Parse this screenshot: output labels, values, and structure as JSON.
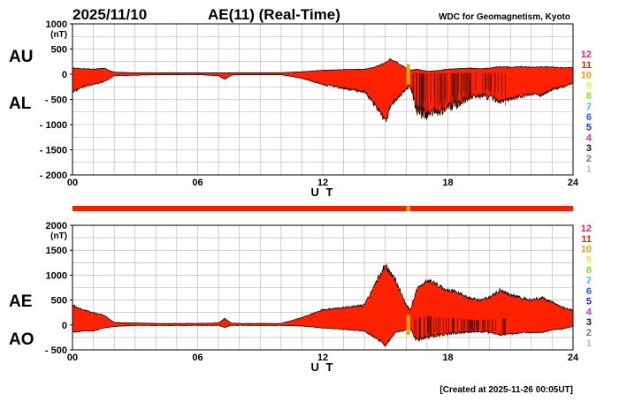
{
  "header": {
    "date": "2025/11/10",
    "title": "AE(11) (Real-Time)",
    "source": "WDC for Geomagnetism, Kyoto"
  },
  "footer": {
    "created": "[Created at 2025-11-26 00:05UT]"
  },
  "colors": {
    "fill": "#ff2200",
    "outline": "#000000",
    "grid": "#b0b0b0",
    "gap_marker": "#e0b000",
    "bar": "#ee2200"
  },
  "legend_stations": [
    {
      "label": "12",
      "color": "#e0208a"
    },
    {
      "label": "11",
      "color": "#ee2200"
    },
    {
      "label": "10",
      "color": "#ff9900"
    },
    {
      "label": "9",
      "color": "#e8e84a"
    },
    {
      "label": "8",
      "color": "#88dd22"
    },
    {
      "label": "7",
      "color": "#22ccdd"
    },
    {
      "label": "6",
      "color": "#2255ff"
    },
    {
      "label": "5",
      "color": "#3322aa"
    },
    {
      "label": "4",
      "color": "#dd22dd"
    },
    {
      "label": "3",
      "color": "#111111"
    },
    {
      "label": "2",
      "color": "#777777"
    },
    {
      "label": "1",
      "color": "#bbbbbb"
    }
  ],
  "chart_data": [
    {
      "type": "area",
      "panel": "top",
      "ylabel_units": "(nT)",
      "upper_label": "AU",
      "lower_label": "AL",
      "xlabel": "U T",
      "x_ticks": [
        "00",
        "06",
        "12",
        "18",
        "24"
      ],
      "y_ticks": [
        "1000",
        "500",
        "0",
        "- 500",
        "- 1000",
        "- 1500",
        "- 2000"
      ],
      "xlim": [
        0,
        24
      ],
      "ylim": [
        -2000,
        1000
      ],
      "grid": true,
      "x": [
        0,
        0.5,
        1,
        1.5,
        2,
        3,
        4,
        5,
        6,
        7,
        7.3,
        7.6,
        8,
        9,
        10,
        11,
        12,
        13,
        14,
        14.5,
        15,
        15.2,
        15.5,
        16,
        16.2,
        16.5,
        17,
        17.5,
        18,
        18.5,
        19,
        19.5,
        20,
        20.5,
        21,
        21.5,
        22,
        22.5,
        23,
        23.5,
        24
      ],
      "series": [
        {
          "name": "AU",
          "values": [
            120,
            110,
            100,
            120,
            40,
            30,
            30,
            30,
            30,
            25,
            25,
            30,
            30,
            30,
            30,
            50,
            80,
            90,
            100,
            140,
            230,
            300,
            250,
            120,
            80,
            100,
            60,
            70,
            100,
            110,
            120,
            110,
            120,
            150,
            140,
            150,
            140,
            150,
            140,
            130,
            130
          ]
        },
        {
          "name": "AL",
          "values": [
            -350,
            -250,
            -200,
            -150,
            -30,
            -20,
            -10,
            -10,
            -10,
            -30,
            -100,
            -20,
            -10,
            -10,
            -10,
            -80,
            -200,
            -280,
            -350,
            -600,
            -950,
            -700,
            -500,
            -300,
            -250,
            -700,
            -800,
            -750,
            -650,
            -600,
            -450,
            -420,
            -450,
            -550,
            -500,
            -450,
            -400,
            -420,
            -300,
            -250,
            -180
          ]
        }
      ],
      "gap_marker_x": 16.1
    },
    {
      "type": "area",
      "panel": "bottom",
      "ylabel_units": "(nT)",
      "upper_label": "AE",
      "lower_label": "AO",
      "xlabel": "U T",
      "x_ticks": [
        "00",
        "06",
        "12",
        "18",
        "24"
      ],
      "y_ticks": [
        "2000",
        "1500",
        "1000",
        "500",
        "0",
        "- 500"
      ],
      "xlim": [
        0,
        24
      ],
      "ylim": [
        -500,
        2000
      ],
      "grid": true,
      "x": [
        0,
        0.5,
        1,
        1.5,
        2,
        3,
        4,
        5,
        6,
        7,
        7.3,
        7.6,
        8,
        9,
        10,
        11,
        12,
        13,
        14,
        14.5,
        15,
        15.2,
        15.5,
        16,
        16.2,
        16.5,
        17,
        17.5,
        18,
        18.5,
        19,
        19.5,
        20,
        20.5,
        21,
        21.5,
        22,
        22.5,
        23,
        23.5,
        24
      ],
      "series": [
        {
          "name": "AE",
          "values": [
            400,
            300,
            250,
            200,
            50,
            40,
            30,
            30,
            30,
            40,
            130,
            40,
            30,
            30,
            30,
            150,
            300,
            350,
            400,
            800,
            1200,
            1050,
            900,
            400,
            300,
            700,
            900,
            800,
            700,
            650,
            550,
            500,
            550,
            700,
            600,
            550,
            500,
            550,
            450,
            350,
            300
          ]
        },
        {
          "name": "AO",
          "values": [
            -150,
            -120,
            -120,
            -60,
            -30,
            -10,
            -10,
            -10,
            -10,
            -10,
            -50,
            -10,
            -10,
            -10,
            -10,
            -20,
            -60,
            -90,
            -120,
            -250,
            -400,
            -300,
            -150,
            -100,
            -80,
            -300,
            -250,
            -200,
            -180,
            -160,
            -140,
            -130,
            -150,
            -200,
            -180,
            -160,
            -150,
            -150,
            -100,
            -80,
            -30
          ]
        }
      ],
      "gap_marker_x": 16.1
    }
  ]
}
